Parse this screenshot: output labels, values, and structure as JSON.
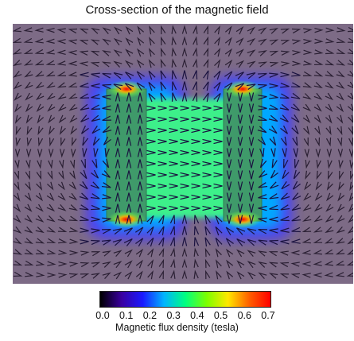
{
  "chart_data": {
    "type": "heatmap",
    "title": "Cross-section of the magnetic field",
    "colorbar": {
      "label": "Magnetic flux density (tesla)",
      "range": [
        0.0,
        0.7
      ],
      "ticks": [
        "0.0",
        "0.1",
        "0.2",
        "0.3",
        "0.4",
        "0.5",
        "0.6",
        "0.7"
      ],
      "colors": [
        "#000000",
        "#3a00a0",
        "#1a1aff",
        "#00b4ff",
        "#00ff80",
        "#7cff00",
        "#ffe800",
        "#ff6000",
        "#ff0000"
      ]
    },
    "background_color": "#7d6b86",
    "arrow_color": "#2a1f33",
    "field": {
      "gap_flux_density": 0.4,
      "outer_flux_density": 0.2,
      "magnet_edge_flux_density": 0.65,
      "background_flux_density": 0.0,
      "gap_arrow_direction": "right"
    }
  }
}
